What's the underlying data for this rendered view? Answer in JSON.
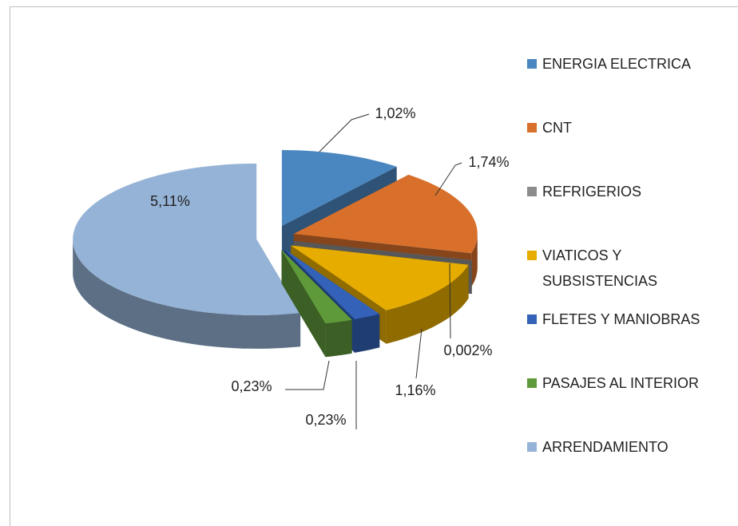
{
  "chart_data": {
    "type": "pie3d",
    "categories": [
      "ENERGIA ELECTRICA",
      "CNT",
      "REFRIGERIOS",
      "VIATICOS Y SUBSISTENCIAS",
      "FLETES Y MANIOBRAS",
      "PASAJES AL INTERIOR",
      "ARRENDAMIENTO"
    ],
    "values": [
      1.02,
      1.74,
      0.002,
      1.16,
      0.23,
      0.23,
      5.11
    ],
    "value_labels": [
      "1,02%",
      "1,74%",
      "0,002%",
      "1,16%",
      "0,23%",
      "0,23%",
      "5,11%"
    ],
    "colors": [
      "#4a86c0",
      "#d8702c",
      "#8c8c8c",
      "#e6ac00",
      "#3462b8",
      "#5f9a3a",
      "#95b3d7"
    ],
    "legend": "right"
  }
}
